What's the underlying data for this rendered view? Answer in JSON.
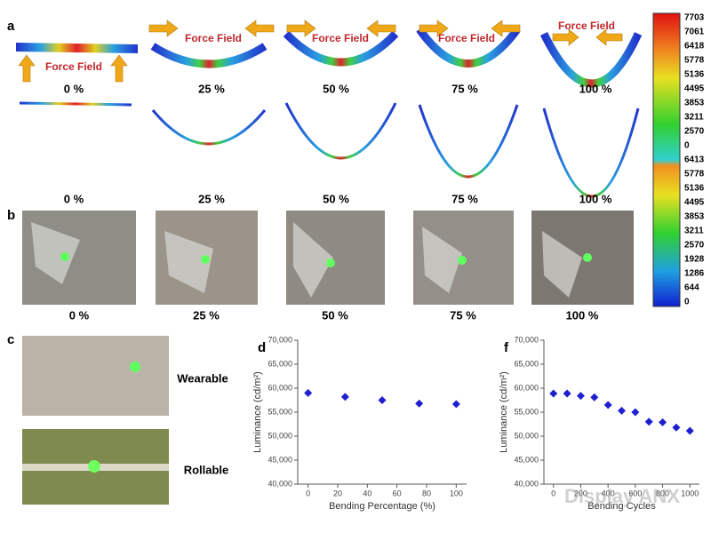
{
  "panel_labels": [
    "a",
    "b",
    "c",
    "d",
    "f"
  ],
  "force_field_labels": [
    "Force Field",
    "Force Field",
    "Force Field",
    "Force Field",
    "Force Field"
  ],
  "row1_labels": [
    "0 %",
    "25 %",
    "50 %",
    "75 %",
    "100 %"
  ],
  "row2_labels": [
    "0 %",
    "25 %",
    "50 %",
    "75 %",
    "100 %"
  ],
  "panel_b_labels": [
    "0 %",
    "25 %",
    "50 %",
    "75 %",
    "100 %"
  ],
  "colorbar_labels": [
    7703,
    7061,
    6418,
    5778,
    5136,
    4495,
    3853,
    3211,
    2570,
    0,
    6413,
    5778,
    5136,
    4495,
    3853,
    3211,
    2570,
    1928,
    1286,
    644,
    0
  ],
  "panel_c_labels": [
    "Wearable",
    "Rollable"
  ],
  "watermark": "Display ANX",
  "chart_data": [
    {
      "type": "scatter",
      "x_label": "Bending Percentage (%)",
      "y_label": "Luminance (cd/m²)",
      "x": [
        0,
        25,
        50,
        75,
        100
      ],
      "values": [
        59000,
        58200,
        57500,
        56800,
        56700
      ],
      "color": "#1f1fd0",
      "xlim": [
        -7,
        107
      ],
      "xticks": [
        0,
        20,
        40,
        60,
        80,
        100
      ],
      "ylim": [
        40000,
        70000
      ],
      "yticks": [
        {
          "value": 40000,
          "label": "40,000"
        },
        {
          "value": 45000,
          "label": "45,000"
        },
        {
          "value": 50000,
          "label": "50,000"
        },
        {
          "value": 55000,
          "label": "55,000"
        },
        {
          "value": 60000,
          "label": "60,000"
        },
        {
          "value": 65000,
          "label": "65,000"
        },
        {
          "value": 70000,
          "label": "70,000"
        }
      ]
    },
    {
      "type": "scatter",
      "x_label": "Bending Cycles",
      "y_label": "Luminance (cd/m²)",
      "x": [
        0,
        100,
        200,
        300,
        400,
        500,
        600,
        700,
        800,
        900,
        1000
      ],
      "values": [
        58900,
        58900,
        58400,
        58100,
        56500,
        55300,
        55000,
        53000,
        52900,
        51800,
        51100
      ],
      "color": "#1f1fd0",
      "xlim": [
        -70,
        1070
      ],
      "xticks": [
        0,
        200,
        400,
        600,
        800,
        1000
      ],
      "ylim": [
        40000,
        70000
      ],
      "yticks": [
        {
          "value": 40000,
          "label": "40,000"
        },
        {
          "value": 45000,
          "label": "45,000"
        },
        {
          "value": 50000,
          "label": "50,000"
        },
        {
          "value": 55000,
          "label": "55,000"
        },
        {
          "value": 60000,
          "label": "60,000"
        },
        {
          "value": 65000,
          "label": "65,000"
        },
        {
          "value": 70000,
          "label": "70,000"
        }
      ]
    }
  ]
}
